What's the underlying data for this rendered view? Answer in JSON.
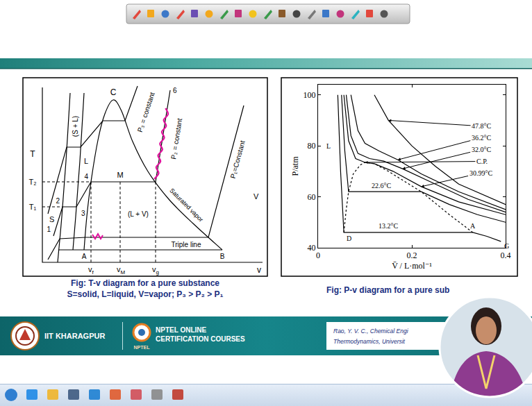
{
  "tv_diagram": {
    "t_axis": "T",
    "v_axis": "v",
    "t2": "T₂",
    "t1": "T₁",
    "critical_point": "C",
    "p3": "P₃ = constant",
    "p2": "P₂ = constant",
    "p1": "P₁=Constant",
    "state_6": "6",
    "solid": "S",
    "liquid": "L",
    "solid_liquid": "(S + L)",
    "state_1": "1",
    "state_2": "2",
    "state_3": "3",
    "state_4": "4",
    "state_m": "M",
    "liquid_vapor": "(L + V)",
    "saturated_vapor": "Saturated vapor",
    "vapor": "V",
    "triple_line": "Triple line",
    "point_a": "A",
    "point_b": "B",
    "v_f": {
      "base": "v",
      "sub": "f"
    },
    "v_m": {
      "base": "v",
      "sub": "M"
    },
    "v_g": {
      "base": "v",
      "sub": "g"
    }
  },
  "tv_caption": [
    "Fig: T-v diagram for a pure substance",
    "S=solid, L=liquid, V=vapor; P₃ > P₂ > P₁"
  ],
  "chart_data": {
    "type": "line",
    "x_label": "V̄ / L·mol⁻¹",
    "y_label": "P/atm",
    "xlim": [
      0,
      0.4
    ],
    "ylim": [
      40,
      104
    ],
    "xticks": [
      0,
      0.2,
      0.4
    ],
    "yticks": [
      40,
      60,
      80,
      100
    ],
    "grid": false,
    "series": [
      {
        "name": "47.8°C",
        "color": "#000000",
        "x": [
          0.12,
          0.15,
          0.2,
          0.25,
          0.3,
          0.4
        ],
        "values": [
          100,
          90,
          80,
          72,
          65,
          57
        ]
      },
      {
        "name": "36.2°C",
        "color": "#000000",
        "x": [
          0.07,
          0.085,
          0.1,
          0.13,
          0.17,
          0.22,
          0.3,
          0.4
        ],
        "values": [
          100,
          86,
          81,
          78,
          74.5,
          69,
          62,
          55
        ]
      },
      {
        "name": "32.0°C",
        "color": "#000000",
        "x": [
          0.06,
          0.07,
          0.085,
          0.11,
          0.14,
          0.18,
          0.25,
          0.32,
          0.4
        ],
        "values": [
          100,
          84,
          77,
          75,
          74,
          71,
          65,
          59,
          54
        ]
      },
      {
        "name": "30.99°C",
        "color": "#000000",
        "x": [
          0.055,
          0.065,
          0.08,
          0.1,
          0.12,
          0.16,
          0.22,
          0.3,
          0.4
        ],
        "values": [
          100,
          82,
          75,
          73.5,
          73,
          70,
          64,
          58,
          53
        ]
      },
      {
        "name": "22.6°C",
        "color": "#000000",
        "x": [
          0.05,
          0.057,
          0.065,
          0.22,
          0.28,
          0.34,
          0.4
        ],
        "values": [
          100,
          78,
          62,
          62,
          57,
          53,
          50
        ]
      },
      {
        "name": "13.2°C",
        "color": "#000000",
        "x": [
          0.042,
          0.048,
          0.055,
          0.33,
          0.36,
          0.39
        ],
        "values": [
          100,
          70,
          46,
          46,
          44.5,
          42.5
        ]
      },
      {
        "color": "#000000",
        "line_style": "dotted",
        "x": [
          0.055,
          0.06,
          0.065,
          0.075,
          0.09,
          0.1,
          0.12,
          0.15,
          0.22,
          0.28,
          0.33
        ],
        "values": [
          46,
          55,
          62,
          69,
          72.5,
          73.5,
          73,
          70,
          62,
          53,
          46
        ]
      }
    ],
    "callouts": [
      {
        "text": "47.8°C",
        "x": 0.15,
        "y": 90
      },
      {
        "text": "36.2°C",
        "x": 0.17,
        "y": 74.5
      },
      {
        "text": "32.0°C",
        "x": 0.18,
        "y": 71
      },
      {
        "text": "C.P.",
        "x": 0.1,
        "y": 73.5
      },
      {
        "text": "30.99°C",
        "x": 0.22,
        "y": 64
      }
    ],
    "labels": [
      {
        "text": "22.6°C",
        "x": 0.135,
        "y": 62
      },
      {
        "text": "13.2°C",
        "x": 0.15,
        "y": 46
      },
      {
        "text": "L",
        "x": 0.046,
        "y": 80
      },
      {
        "text": "D",
        "x": 0.055,
        "y": 46
      },
      {
        "text": "A",
        "x": 0.33,
        "y": 46
      },
      {
        "text": "G",
        "x": 0.39,
        "y": 42.5
      }
    ]
  },
  "pv_caption": "Fig: P-v diagram for a pure sub",
  "footer": {
    "institute": "IIT KHARAGPUR",
    "nptel_logo": "NPTEL",
    "nptel": [
      "NPTEL ONLINE",
      "CERTIFICATION COURSES"
    ],
    "reference": [
      "Rao, Y. V. C., Chemical Engi",
      "Thermodynamics, Universit"
    ]
  }
}
